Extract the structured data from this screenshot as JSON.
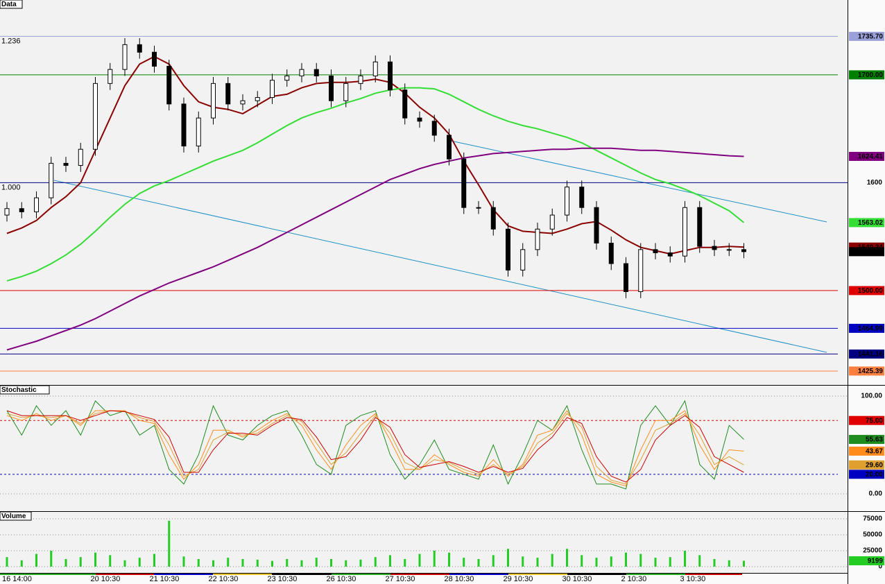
{
  "chart_data": [
    {
      "type": "candlestick",
      "title": "Data",
      "categories": [
        "16 14:00",
        null,
        null,
        null,
        null,
        null,
        "20 10:30",
        null,
        null,
        null,
        "21 10:30",
        null,
        null,
        null,
        "22 10:30",
        null,
        null,
        null,
        "23 10:30",
        null,
        null,
        null,
        "26 10:30",
        null,
        null,
        null,
        "27 10:30",
        null,
        null,
        null,
        "28 10:30",
        null,
        null,
        null,
        "29 10:30",
        null,
        null,
        null,
        "30 10:30",
        null,
        null,
        null,
        "2 10:30",
        null,
        null,
        null,
        "3 10:30",
        null,
        null,
        null,
        null
      ],
      "open": [
        1570,
        1576,
        1573,
        1586,
        1618,
        1616,
        1631,
        1692,
        1705,
        1728,
        1721,
        1708,
        1673,
        1634,
        1660,
        1692,
        1673,
        1676,
        1679,
        1695,
        1699,
        1705,
        1699,
        1676,
        1692,
        1699,
        1712,
        1686,
        1660,
        1657,
        1644,
        1622,
        1577,
        1577,
        1557,
        1519,
        1538,
        1557,
        1570,
        1596,
        1577,
        1544,
        1525,
        1499,
        1538,
        1535,
        1532,
        1577,
        1541,
        1538,
        1538
      ],
      "high": [
        1582,
        1582,
        1592,
        1624,
        1624,
        1637,
        1698,
        1711,
        1734,
        1734,
        1727,
        1714,
        1679,
        1666,
        1698,
        1698,
        1682,
        1685,
        1701,
        1705,
        1711,
        1711,
        1705,
        1698,
        1705,
        1718,
        1718,
        1692,
        1666,
        1663,
        1650,
        1628,
        1583,
        1583,
        1563,
        1544,
        1563,
        1576,
        1602,
        1602,
        1583,
        1550,
        1531,
        1544,
        1544,
        1541,
        1583,
        1583,
        1547,
        1544,
        1544
      ],
      "low": [
        1564,
        1567,
        1567,
        1580,
        1610,
        1610,
        1625,
        1686,
        1699,
        1715,
        1702,
        1667,
        1628,
        1628,
        1654,
        1667,
        1667,
        1670,
        1673,
        1689,
        1693,
        1693,
        1670,
        1670,
        1686,
        1693,
        1680,
        1654,
        1651,
        1638,
        1616,
        1571,
        1571,
        1551,
        1513,
        1513,
        1532,
        1551,
        1564,
        1571,
        1538,
        1519,
        1493,
        1493,
        1529,
        1526,
        1526,
        1535,
        1532,
        1532,
        1530
      ],
      "close": [
        1576,
        1573,
        1586,
        1618,
        1616,
        1631,
        1692,
        1705,
        1728,
        1721,
        1708,
        1673,
        1634,
        1660,
        1692,
        1673,
        1676,
        1679,
        1695,
        1699,
        1705,
        1699,
        1676,
        1692,
        1699,
        1712,
        1686,
        1660,
        1657,
        1644,
        1622,
        1577,
        1577,
        1557,
        1519,
        1538,
        1557,
        1570,
        1596,
        1577,
        1544,
        1525,
        1499,
        1538,
        1535,
        1532,
        1577,
        1541,
        1538,
        1538,
        1536.06
      ],
      "last_box": true,
      "lines": [
        {
          "color": "#8b0000",
          "values": [
            1553,
            1558,
            1565,
            1577,
            1587,
            1600,
            1630,
            1660,
            1690,
            1710,
            1717,
            1710,
            1690,
            1675,
            1670,
            1668,
            1664,
            1672,
            1680,
            1682,
            1688,
            1692,
            1693,
            1693,
            1694,
            1696,
            1693,
            1683,
            1670,
            1660,
            1645,
            1620,
            1598,
            1575,
            1560,
            1555,
            1554,
            1553,
            1557,
            1562,
            1564,
            1556,
            1547,
            1540,
            1537,
            1534,
            1537,
            1540,
            1540,
            1541,
            1540.34
          ]
        },
        {
          "color": "#33dd33",
          "values": [
            1509,
            1513,
            1518,
            1525,
            1533,
            1543,
            1555,
            1568,
            1580,
            1590,
            1597,
            1602,
            1608,
            1614,
            1620,
            1625,
            1630,
            1637,
            1645,
            1653,
            1660,
            1665,
            1669,
            1674,
            1678,
            1683,
            1686,
            1688,
            1688,
            1687,
            1682,
            1675,
            1668,
            1662,
            1657,
            1653,
            1650,
            1646,
            1642,
            1637,
            1630,
            1623,
            1616,
            1609,
            1603,
            1599,
            1594,
            1588,
            1581,
            1574,
            1563.02
          ]
        },
        {
          "color": "#800080",
          "values": [
            1445,
            1449,
            1453,
            1458,
            1463,
            1468,
            1474,
            1481,
            1488,
            1495,
            1501,
            1507,
            1512,
            1517,
            1522,
            1528,
            1534,
            1540,
            1547,
            1554,
            1561,
            1568,
            1575,
            1582,
            1589,
            1596,
            1603,
            1608,
            1613,
            1617,
            1620,
            1623,
            1625,
            1627,
            1628,
            1629,
            1630,
            1631,
            1631,
            1632,
            1632,
            1632,
            1631,
            1630,
            1630,
            1629,
            1628,
            1627,
            1626,
            1625,
            1624.41
          ]
        }
      ],
      "levels": [
        {
          "value": 1735.7,
          "label": "1735.70",
          "color": "#9aa0d8"
        },
        {
          "value": 1700,
          "label": "1700.00",
          "color": "#008000"
        },
        {
          "value": 1500,
          "label": "1500.00",
          "color": "#e00000"
        },
        {
          "value": 1464.99,
          "color": "#0000c0"
        },
        {
          "value": 1441.16,
          "color": "#000080"
        },
        {
          "value": 1425.39,
          "color": "#ff7f3f"
        }
      ],
      "annotations": [
        {
          "text": "1.236",
          "at": 1735.7
        },
        {
          "text": "1.000",
          "at": 1600
        }
      ],
      "ylim": [
        1412.5,
        1769.4
      ],
      "yticks": [
        1600
      ],
      "grid_color": "#000080"
    },
    {
      "type": "line",
      "title": "Stochastic",
      "series": [
        {
          "color": "#1e8c1e",
          "last_box": true,
          "values": [
            85,
            60,
            90,
            70,
            85,
            60,
            95,
            80,
            85,
            60,
            70,
            25,
            10,
            40,
            90,
            60,
            55,
            70,
            80,
            85,
            60,
            30,
            20,
            70,
            80,
            85,
            40,
            15,
            30,
            55,
            25,
            20,
            15,
            50,
            10,
            40,
            75,
            65,
            90,
            45,
            10,
            10,
            5,
            70,
            90,
            70,
            95,
            30,
            15,
            70,
            55.63
          ]
        },
        {
          "color": "#ff8c1a",
          "last_box": true,
          "values": [
            80,
            75,
            82,
            75,
            80,
            70,
            85,
            85,
            85,
            75,
            72,
            40,
            15,
            30,
            65,
            65,
            58,
            65,
            75,
            82,
            70,
            45,
            25,
            50,
            70,
            82,
            55,
            25,
            25,
            40,
            30,
            22,
            18,
            35,
            18,
            30,
            60,
            65,
            85,
            60,
            20,
            12,
            8,
            45,
            75,
            75,
            85,
            50,
            25,
            45,
            43.67
          ]
        },
        {
          "color": "#e0a030",
          "last_box": true,
          "end_label": "29.60",
          "values": [
            82,
            78,
            80,
            78,
            80,
            72,
            82,
            85,
            84,
            78,
            74,
            50,
            18,
            25,
            55,
            63,
            60,
            62,
            72,
            80,
            74,
            52,
            30,
            42,
            62,
            80,
            62,
            32,
            25,
            35,
            32,
            25,
            20,
            30,
            20,
            28,
            52,
            62,
            82,
            68,
            28,
            14,
            10,
            35,
            65,
            72,
            82,
            60,
            30,
            38,
            29.6
          ]
        },
        {
          "color": "#cc0000",
          "values": [
            85,
            80,
            80,
            80,
            80,
            75,
            80,
            85,
            84,
            80,
            76,
            58,
            22,
            22,
            45,
            62,
            62,
            60,
            70,
            78,
            76,
            58,
            35,
            38,
            55,
            78,
            68,
            40,
            27,
            30,
            33,
            28,
            22,
            28,
            22,
            26,
            45,
            58,
            78,
            72,
            38,
            18,
            12,
            25,
            55,
            70,
            80,
            68,
            38,
            30,
            22
          ]
        }
      ],
      "levels": [
        {
          "value": 75,
          "label": "75.00",
          "color": "#e00000"
        },
        {
          "value": 20,
          "label": "20.00",
          "color": "#0000c0"
        }
      ],
      "ylim": [
        -17.7,
        110.6
      ],
      "yticks": [
        {
          "value": 100,
          "label": "100.00"
        },
        {
          "value": 0,
          "label": "0.00"
        }
      ]
    },
    {
      "type": "bar",
      "title": "Volume",
      "color": "#22cc22",
      "last_box": true,
      "values": [
        15000,
        10000,
        20000,
        25000,
        12000,
        15000,
        22000,
        18000,
        10000,
        14000,
        20000,
        72000,
        16000,
        12000,
        10000,
        14000,
        12000,
        11000,
        9000,
        12000,
        10000,
        14000,
        12000,
        10000,
        11000,
        15000,
        18000,
        12000,
        20000,
        25000,
        22000,
        14000,
        12000,
        18000,
        28000,
        16000,
        14000,
        20000,
        28000,
        18000,
        14000,
        16000,
        22000,
        20000,
        14000,
        15000,
        25000,
        18000,
        12000,
        10000,
        9199
      ],
      "ylim": [
        -9783,
        85870
      ],
      "yticks": [
        0,
        25000,
        50000,
        75000
      ]
    }
  ]
}
